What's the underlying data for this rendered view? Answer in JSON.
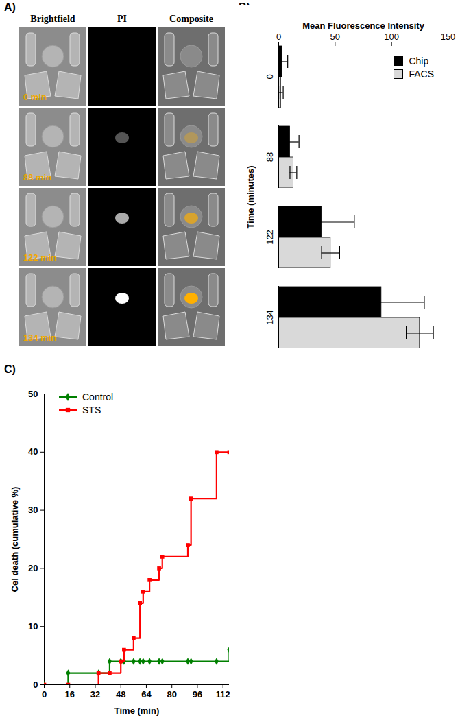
{
  "image_panel": {
    "label": "A)",
    "columns": [
      "Brightfield",
      "PI",
      "Composite"
    ],
    "row_labels": [
      "0 min",
      "88 min",
      "122 min",
      "134 min"
    ]
  },
  "chart_data": [
    {
      "panel": "B)",
      "type": "bar",
      "orientation": "horizontal",
      "x_label": "Mean Fluorescence Intensity",
      "y_label": "Time (minutes)",
      "categories": [
        0,
        88,
        122,
        134
      ],
      "series": [
        {
          "name": "Chip",
          "color": "#000000",
          "values": [
            3,
            10,
            38,
            91
          ],
          "errors": [
            5,
            8,
            29,
            38
          ]
        },
        {
          "name": "FACS",
          "color": "#d9d9d9",
          "values": [
            2,
            13,
            46,
            125
          ],
          "errors": [
            2,
            3,
            8,
            12
          ]
        }
      ],
      "xlim": [
        0,
        150
      ],
      "xticks": [
        0,
        50,
        100,
        150
      ],
      "legend": "top-right"
    },
    {
      "panel": "C)",
      "type": "line",
      "line_style": "step",
      "x_label": "Time (min)",
      "y_label": "Cel death (cumulative %)",
      "x": [
        0,
        15,
        34,
        41,
        48,
        50,
        56,
        60,
        62,
        66,
        72,
        74,
        90,
        92,
        108,
        116
      ],
      "series": [
        {
          "name": "Control",
          "color": "#008000",
          "marker": "diamond",
          "values": [
            0,
            2,
            2,
            4,
            4,
            4,
            4,
            4,
            4,
            4,
            4,
            4,
            4,
            4,
            4,
            6
          ]
        },
        {
          "name": "STS",
          "color": "#ff0000",
          "marker": "square",
          "values": [
            0,
            0,
            2,
            2,
            4,
            6,
            8,
            14,
            16,
            18,
            20,
            22,
            24,
            32,
            40,
            40
          ]
        }
      ],
      "xlim": [
        0,
        116
      ],
      "xticks": [
        0,
        16,
        32,
        48,
        64,
        80,
        96,
        112
      ],
      "ylim": [
        0,
        50
      ],
      "yticks": [
        0,
        10,
        20,
        30,
        40,
        50
      ],
      "legend": "top-left"
    }
  ]
}
